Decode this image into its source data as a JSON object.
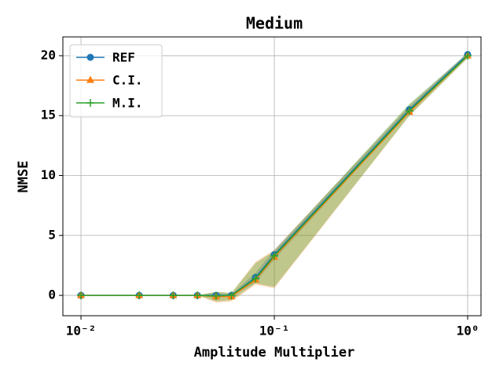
{
  "chart_data": {
    "type": "line",
    "title": "Medium",
    "xlabel": "Amplitude Multiplier",
    "ylabel": "NMSE",
    "xscale": "log",
    "grid": true,
    "legend": "upper left",
    "x": [
      0.01,
      0.02,
      0.03,
      0.04,
      0.05,
      0.06,
      0.08,
      0.1,
      0.5,
      1
    ],
    "xlim": [
      0.00806,
      1.172
    ],
    "xticks": [
      {
        "value": 0.01,
        "label": "10⁻²"
      },
      {
        "value": 0.1,
        "label": "10⁻¹"
      },
      {
        "value": 1,
        "label": "10⁰"
      }
    ],
    "ylim": [
      -1.7,
      21.57
    ],
    "yticks": [
      0,
      5,
      10,
      15,
      20
    ],
    "series": [
      {
        "name": "REF",
        "color": "#1f77b4",
        "marker": "circle",
        "values": [
          0,
          0,
          0,
          0,
          0,
          0,
          1.5,
          3.4,
          15.5,
          20.1
        ],
        "lower": [
          0,
          0,
          0,
          0,
          -0.2,
          -0.1,
          1.1,
          3.0,
          15.3,
          19.9
        ],
        "upper": [
          0,
          0,
          0,
          0,
          0.2,
          0.1,
          1.9,
          3.8,
          15.8,
          20.3
        ]
      },
      {
        "name": "C.I.",
        "color": "#ff7f0e",
        "marker": "triangle",
        "values": [
          0,
          0,
          0,
          0,
          -0.1,
          -0.1,
          1.3,
          3.2,
          15.3,
          20.0
        ],
        "lower": [
          0,
          0,
          0,
          0,
          -0.6,
          -0.5,
          0.9,
          0.6,
          15.0,
          19.8
        ],
        "upper": [
          0,
          0,
          0,
          0,
          0.3,
          0.2,
          2.8,
          3.8,
          15.9,
          20.2
        ]
      },
      {
        "name": "M.I.",
        "color": "#2ca02c",
        "marker": "plus",
        "values": [
          0,
          0,
          0,
          0,
          -0.05,
          0,
          1.4,
          3.3,
          15.4,
          20.0
        ],
        "lower": [
          0,
          0,
          0,
          0,
          -0.5,
          -0.4,
          1.0,
          0.7,
          15.0,
          19.8
        ],
        "upper": [
          0,
          0,
          0,
          0,
          0.3,
          0.2,
          2.7,
          3.7,
          16.0,
          20.2
        ]
      }
    ]
  }
}
